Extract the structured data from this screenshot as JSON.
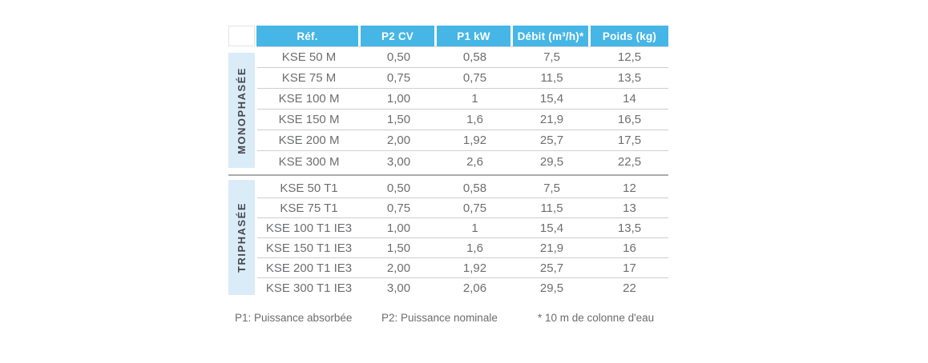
{
  "table": {
    "columns": [
      {
        "label": "Réf."
      },
      {
        "label": "P2 CV"
      },
      {
        "label": "P1 kW"
      },
      {
        "label": "Débit (m³/h)*"
      },
      {
        "label": "Poids (kg)"
      }
    ],
    "sections": [
      {
        "label": "MONOPHASÉE",
        "rows": [
          [
            "KSE 50 M",
            "0,50",
            "0,58",
            "7,5",
            "12,5"
          ],
          [
            "KSE 75 M",
            "0,75",
            "0,75",
            "11,5",
            "13,5"
          ],
          [
            "KSE 100 M",
            "1,00",
            "1",
            "15,4",
            "14"
          ],
          [
            "KSE 150 M",
            "1,50",
            "1,6",
            "21,9",
            "16,5"
          ],
          [
            "KSE 200 M",
            "2,00",
            "1,92",
            "25,7",
            "17,5"
          ],
          [
            "KSE 300 M",
            "3,00",
            "2,6",
            "29,5",
            "22,5"
          ]
        ]
      },
      {
        "label": "TRIPHASÉE",
        "rows": [
          [
            "KSE 50 T1",
            "0,50",
            "0,58",
            "7,5",
            "12"
          ],
          [
            "KSE 75 T1",
            "0,75",
            "0,75",
            "11,5",
            "13"
          ],
          [
            "KSE 100 T1 IE3",
            "1,00",
            "1",
            "15,4",
            "13,5"
          ],
          [
            "KSE 150 T1 IE3",
            "1,50",
            "1,6",
            "21,9",
            "16"
          ],
          [
            "KSE 200 T1 IE3",
            "2,00",
            "1,92",
            "25,7",
            "17"
          ],
          [
            "KSE 300 T1 IE3",
            "3,00",
            "2,06",
            "29,5",
            "22"
          ]
        ]
      }
    ]
  },
  "footnotes": {
    "p1": "P1: Puissance absorbée",
    "p2": "P2: Puissance nominale",
    "asterisk": "* 10 m de colonne d'eau"
  },
  "colors": {
    "header_bg": "#45b6e6",
    "header_text": "#ffffff",
    "section_band_bg": "#d9ecf8",
    "cell_text": "#6d6e70",
    "row_line": "#cdced0",
    "section_divider": "#a9abad"
  }
}
